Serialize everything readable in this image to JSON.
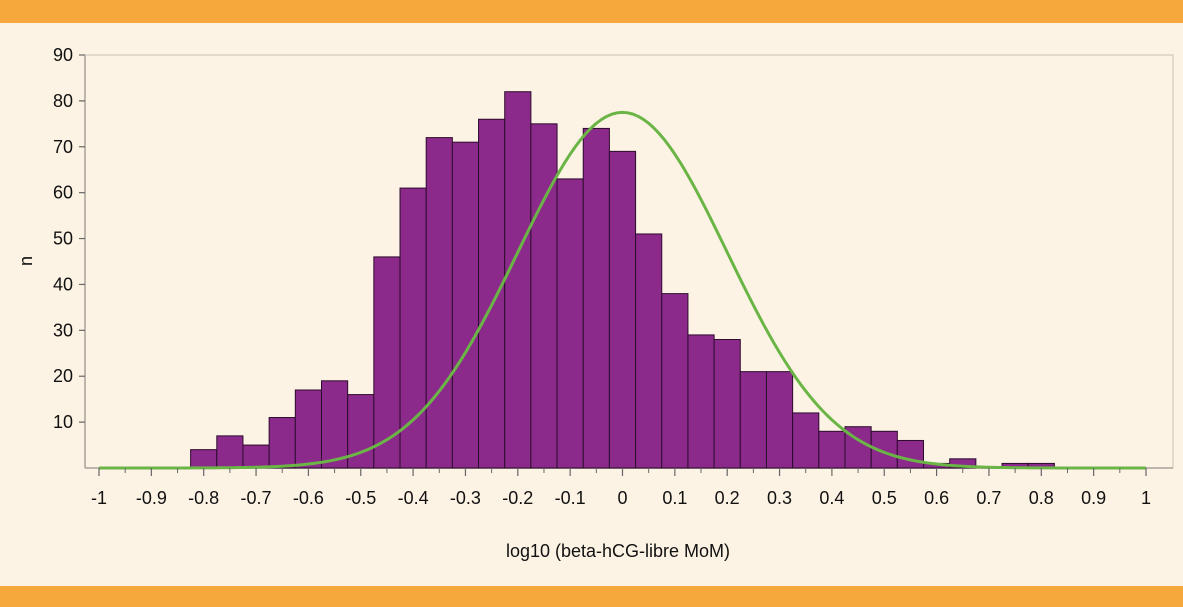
{
  "colors": {
    "band": "#f6a83c",
    "background": "#fdf3e4",
    "bar_fill": "#8c2a8c",
    "bar_stroke": "#2c0c2c",
    "curve": "#6ab546",
    "axis": "#666666"
  },
  "chart_data": {
    "type": "bar",
    "title": "",
    "xlabel": "log10 (beta-hCG-libre MoM)",
    "ylabel": "n",
    "xlim": [
      -1,
      1
    ],
    "ylim": [
      0,
      90
    ],
    "x_ticks": [
      -1,
      -0.9,
      -0.8,
      -0.7,
      -0.6,
      -0.5,
      -0.4,
      -0.3,
      -0.2,
      -0.1,
      0,
      0.1,
      0.2,
      0.3,
      0.4,
      0.5,
      0.6,
      0.7,
      0.8,
      0.9,
      1
    ],
    "y_ticks": [
      10,
      20,
      30,
      40,
      50,
      60,
      70,
      80,
      90
    ],
    "bin_width": 0.05,
    "series": [
      {
        "type": "histogram",
        "bins": [
          {
            "x0": -0.825,
            "value": 4
          },
          {
            "x0": -0.775,
            "value": 7
          },
          {
            "x0": -0.725,
            "value": 5
          },
          {
            "x0": -0.675,
            "value": 11
          },
          {
            "x0": -0.625,
            "value": 17
          },
          {
            "x0": -0.575,
            "value": 19
          },
          {
            "x0": -0.525,
            "value": 16
          },
          {
            "x0": -0.475,
            "value": 46
          },
          {
            "x0": -0.425,
            "value": 61
          },
          {
            "x0": -0.375,
            "value": 72
          },
          {
            "x0": -0.325,
            "value": 71
          },
          {
            "x0": -0.275,
            "value": 76
          },
          {
            "x0": -0.225,
            "value": 82
          },
          {
            "x0": -0.175,
            "value": 75
          },
          {
            "x0": -0.125,
            "value": 63
          },
          {
            "x0": -0.075,
            "value": 74
          },
          {
            "x0": -0.025,
            "value": 69
          },
          {
            "x0": 0.025,
            "value": 51
          },
          {
            "x0": 0.075,
            "value": 38
          },
          {
            "x0": 0.125,
            "value": 29
          },
          {
            "x0": 0.175,
            "value": 28
          },
          {
            "x0": 0.225,
            "value": 21
          },
          {
            "x0": 0.275,
            "value": 21
          },
          {
            "x0": 0.325,
            "value": 12
          },
          {
            "x0": 0.375,
            "value": 8
          },
          {
            "x0": 0.425,
            "value": 9
          },
          {
            "x0": 0.475,
            "value": 8
          },
          {
            "x0": 0.525,
            "value": 6
          },
          {
            "x0": 0.575,
            "value": 1
          },
          {
            "x0": 0.625,
            "value": 2
          },
          {
            "x0": 0.675,
            "value": 0
          },
          {
            "x0": 0.725,
            "value": 1
          },
          {
            "x0": 0.775,
            "value": 1
          }
        ]
      },
      {
        "type": "line",
        "curve": "normal",
        "mean": 0,
        "sd": 0.2,
        "peak": 77.5,
        "x_range": [
          -1,
          1
        ]
      }
    ]
  }
}
